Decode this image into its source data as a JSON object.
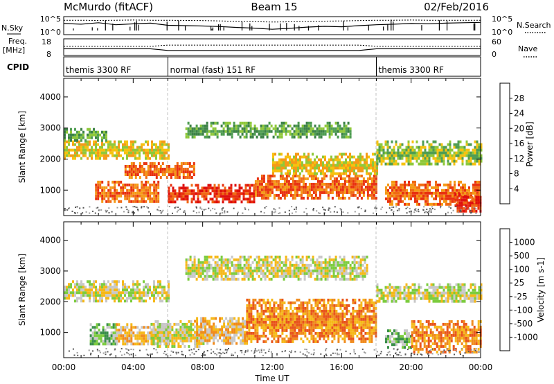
{
  "header": {
    "station": "McMurdo (fitACF)",
    "beam": "Beam 15",
    "date": "02/Feb/2016"
  },
  "nsky_panel": {
    "left_label": "N.Sky",
    "right_label": "N.Search",
    "tick_hi": "10^5",
    "tick_lo": "10^0"
  },
  "freq_panel": {
    "left_label": "Freq.",
    "left_unit": "[MHz]",
    "right_label": "Nave",
    "left_ticks": [
      "18",
      "8"
    ],
    "right_ticks": [
      "60",
      "0"
    ]
  },
  "cpid": {
    "label": "CPID",
    "segments": [
      {
        "name": "themis 3300 RF",
        "start": 0,
        "end": 6
      },
      {
        "name": "normal (fast) 151 RF",
        "start": 6,
        "end": 18
      },
      {
        "name": "themis 3300 RF",
        "start": 18,
        "end": 24
      }
    ]
  },
  "chart_data": [
    {
      "type": "heatmap",
      "xlabel": "",
      "ylabel": "Slant Range [km]",
      "xlim": [
        0,
        24
      ],
      "ylim": [
        180,
        4600
      ],
      "yticks": [
        "1000",
        "2000",
        "3000",
        "4000"
      ],
      "colorbar": {
        "label": "Power [dB]",
        "range": [
          0,
          32
        ],
        "ticks": [
          "4",
          "8",
          "12",
          "16",
          "20",
          "24",
          "28"
        ],
        "colors": [
          "#0a24e6",
          "#1e4fb4",
          "#3c8246",
          "#4f9d52",
          "#8fc83a",
          "#f6c20f",
          "#f59a16",
          "#f06a14",
          "#e8310f",
          "#de0e0e"
        ]
      },
      "bands": [
        {
          "t0": 0.0,
          "t1": 6.0,
          "r0": 2050,
          "r1": 2600,
          "level": 18
        },
        {
          "t0": 0.0,
          "t1": 2.5,
          "r0": 2600,
          "r1": 3000,
          "level": 12
        },
        {
          "t0": 1.8,
          "t1": 5.5,
          "r0": 600,
          "r1": 1300,
          "level": 26
        },
        {
          "t0": 3.5,
          "t1": 7.5,
          "r0": 1400,
          "r1": 1900,
          "level": 24
        },
        {
          "t0": 6.0,
          "t1": 11.0,
          "r0": 650,
          "r1": 1200,
          "level": 27
        },
        {
          "t0": 7.0,
          "t1": 16.5,
          "r0": 2700,
          "r1": 3200,
          "level": 12
        },
        {
          "t0": 11.0,
          "t1": 18.0,
          "r0": 700,
          "r1": 1500,
          "level": 24
        },
        {
          "t0": 12.0,
          "t1": 18.0,
          "r0": 1500,
          "r1": 2200,
          "level": 16
        },
        {
          "t0": 18.0,
          "t1": 24.0,
          "r0": 1800,
          "r1": 2600,
          "level": 14
        },
        {
          "t0": 18.5,
          "t1": 24.0,
          "r0": 500,
          "r1": 1300,
          "level": 24
        },
        {
          "t0": 22.5,
          "t1": 24.0,
          "r0": 300,
          "r1": 900,
          "level": 29
        }
      ]
    },
    {
      "type": "heatmap",
      "xlabel": "Time UT",
      "ylabel": "Slant Range [km]",
      "xlim": [
        0,
        24
      ],
      "ylim": [
        180,
        4600
      ],
      "xticks": [
        "00:00",
        "04:00",
        "08:00",
        "12:00",
        "16:00",
        "20:00",
        "00:00"
      ],
      "yticks": [
        "1000",
        "2000",
        "3000",
        "4000"
      ],
      "colorbar": {
        "label": "Velocity [m s-1]",
        "ticks": [
          "1000",
          "500",
          "100",
          "25",
          "-25",
          "-100",
          "-500",
          "-1000"
        ],
        "colors": [
          "#1c2bd6",
          "#2aa0c8",
          "#3a8f4a",
          "#7ccc3e",
          "#c8c8c8",
          "#f6b818",
          "#f08a1c",
          "#e8541a",
          "#dd1515"
        ]
      },
      "bands": [
        {
          "t0": 0.0,
          "t1": 6.0,
          "r0": 2000,
          "r1": 2700,
          "level": 4
        },
        {
          "t0": 1.5,
          "t1": 3.0,
          "r0": 600,
          "r1": 1300,
          "level": 3
        },
        {
          "t0": 3.0,
          "t1": 6.0,
          "r0": 600,
          "r1": 1300,
          "level": 5
        },
        {
          "t0": 5.0,
          "t1": 8.0,
          "r0": 500,
          "r1": 1400,
          "level": 4
        },
        {
          "t0": 7.5,
          "t1": 10.5,
          "r0": 600,
          "r1": 1500,
          "level": 5
        },
        {
          "t0": 7.0,
          "t1": 17.5,
          "r0": 2700,
          "r1": 3500,
          "level": 4
        },
        {
          "t0": 10.5,
          "t1": 18.0,
          "r0": 700,
          "r1": 2100,
          "level": 6
        },
        {
          "t0": 18.0,
          "t1": 24.0,
          "r0": 2000,
          "r1": 2600,
          "level": 4
        },
        {
          "t0": 18.5,
          "t1": 20.0,
          "r0": 500,
          "r1": 1100,
          "level": 3
        },
        {
          "t0": 20.0,
          "t1": 24.0,
          "r0": 400,
          "r1": 1400,
          "level": 6
        }
      ]
    }
  ],
  "summary_lines": {
    "nsky": [
      0.62,
      0.58,
      0.66,
      0.55,
      0.6,
      0.64,
      0.52,
      0.5,
      0.48,
      0.45,
      0.4,
      0.36,
      0.3,
      0.35,
      0.42,
      0.46,
      0.44,
      0.5,
      0.55,
      0.58,
      0.62,
      0.6,
      0.64,
      0.66,
      0.68
    ],
    "nsearch": [
      0.8,
      0.8,
      0.79,
      0.8,
      0.81,
      0.8,
      0.8,
      0.79,
      0.78,
      0.76,
      0.74,
      0.72,
      0.7,
      0.71,
      0.73,
      0.75,
      0.76,
      0.78,
      0.8,
      0.8,
      0.81,
      0.8,
      0.8,
      0.8,
      0.8
    ],
    "freq": [
      0.4,
      0.4,
      0.4,
      0.4,
      0.4,
      0.4,
      0.3,
      0.3,
      0.3,
      0.3,
      0.3,
      0.3,
      0.3,
      0.3,
      0.3,
      0.3,
      0.3,
      0.3,
      0.4,
      0.4,
      0.4,
      0.4,
      0.4,
      0.4,
      0.4
    ],
    "nave": [
      0.55,
      0.55,
      0.55,
      0.55,
      0.55,
      0.55,
      0.62,
      0.62,
      0.62,
      0.62,
      0.62,
      0.62,
      0.62,
      0.62,
      0.62,
      0.62,
      0.62,
      0.62,
      0.55,
      0.55,
      0.55,
      0.55,
      0.55,
      0.55,
      0.55
    ]
  }
}
